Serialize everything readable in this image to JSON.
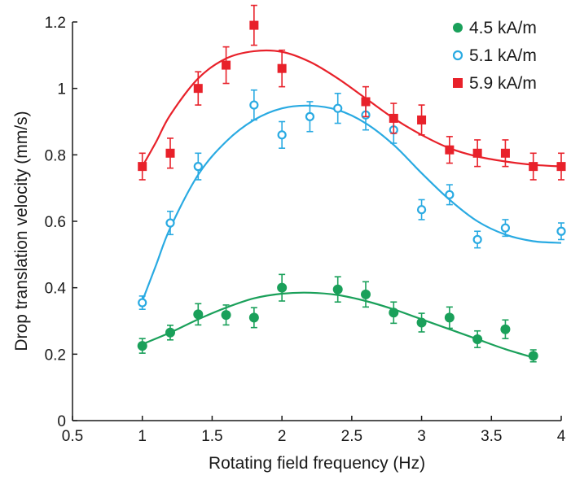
{
  "chart_data": {
    "type": "scatter",
    "xlabel": "Rotating field frequency (Hz)",
    "ylabel": "Drop translation velocity (mm/s)",
    "xlim": [
      0.5,
      4
    ],
    "ylim": [
      0,
      1.2
    ],
    "x_ticks": [
      0.5,
      1,
      1.5,
      2,
      2.5,
      3,
      3.5,
      4
    ],
    "x_tick_labels": [
      "0.5",
      "1",
      "1.5",
      "2",
      "2.5",
      "3",
      "3.5",
      "4"
    ],
    "y_ticks": [
      0,
      0.2,
      0.4,
      0.6,
      0.8,
      1,
      1.2
    ],
    "y_tick_labels": [
      "0",
      "0.2",
      "0.4",
      "0.6",
      "0.8",
      "1",
      "1.2"
    ],
    "grid": false,
    "legend_position": "top-right",
    "series": [
      {
        "name": "4.5 kA/m",
        "color": "#1aa05a",
        "marker": "filled-circle",
        "x": [
          1.0,
          1.2,
          1.4,
          1.6,
          1.8,
          2.0,
          2.4,
          2.6,
          2.8,
          3.0,
          3.2,
          3.4,
          3.6,
          3.8
        ],
        "y": [
          0.225,
          0.265,
          0.32,
          0.318,
          0.31,
          0.4,
          0.395,
          0.38,
          0.325,
          0.295,
          0.31,
          0.245,
          0.275,
          0.195
        ],
        "error": [
          0.022,
          0.022,
          0.032,
          0.03,
          0.03,
          0.04,
          0.038,
          0.038,
          0.032,
          0.028,
          0.032,
          0.025,
          0.028,
          0.018
        ],
        "fit_x": [
          1.0,
          1.2,
          1.4,
          1.6,
          1.8,
          2.0,
          2.2,
          2.4,
          2.6,
          2.8,
          3.0,
          3.2,
          3.4,
          3.6,
          3.8
        ],
        "fit_y": [
          0.23,
          0.265,
          0.305,
          0.34,
          0.368,
          0.382,
          0.385,
          0.378,
          0.36,
          0.335,
          0.305,
          0.275,
          0.245,
          0.215,
          0.19
        ]
      },
      {
        "name": "5.1 kA/m",
        "color": "#29aae2",
        "marker": "open-circle",
        "x": [
          1.0,
          1.2,
          1.4,
          1.8,
          2.0,
          2.2,
          2.4,
          2.6,
          2.8,
          3.0,
          3.2,
          3.4,
          3.6,
          4.0
        ],
        "y": [
          0.355,
          0.595,
          0.765,
          0.95,
          0.86,
          0.915,
          0.94,
          0.92,
          0.875,
          0.635,
          0.68,
          0.545,
          0.58,
          0.57
        ],
        "error": [
          0.02,
          0.035,
          0.04,
          0.045,
          0.04,
          0.045,
          0.045,
          0.045,
          0.04,
          0.03,
          0.03,
          0.025,
          0.025,
          0.025
        ],
        "fit_x": [
          1.0,
          1.1,
          1.2,
          1.4,
          1.6,
          1.8,
          2.0,
          2.2,
          2.4,
          2.6,
          2.8,
          3.0,
          3.2,
          3.4,
          3.6,
          3.8,
          4.0
        ],
        "fit_y": [
          0.36,
          0.47,
          0.58,
          0.74,
          0.84,
          0.905,
          0.94,
          0.948,
          0.935,
          0.895,
          0.83,
          0.745,
          0.665,
          0.6,
          0.56,
          0.54,
          0.535
        ]
      },
      {
        "name": "5.9 kA/m",
        "color": "#e8212a",
        "marker": "filled-square",
        "x": [
          1.0,
          1.2,
          1.4,
          1.6,
          1.8,
          2.0,
          2.6,
          2.8,
          3.0,
          3.2,
          3.4,
          3.6,
          3.8,
          4.0
        ],
        "y": [
          0.765,
          0.805,
          1.0,
          1.07,
          1.19,
          1.06,
          0.96,
          0.91,
          0.905,
          0.815,
          0.805,
          0.805,
          0.765,
          0.765
        ],
        "error": [
          0.04,
          0.045,
          0.05,
          0.055,
          0.06,
          0.055,
          0.045,
          0.045,
          0.045,
          0.04,
          0.04,
          0.04,
          0.04,
          0.04
        ],
        "fit_x": [
          1.0,
          1.1,
          1.2,
          1.4,
          1.6,
          1.8,
          2.0,
          2.2,
          2.4,
          2.6,
          2.8,
          3.0,
          3.2,
          3.4,
          3.6,
          3.8,
          4.0
        ],
        "fit_y": [
          0.765,
          0.84,
          0.92,
          1.03,
          1.09,
          1.112,
          1.11,
          1.08,
          1.03,
          0.97,
          0.91,
          0.86,
          0.82,
          0.795,
          0.78,
          0.77,
          0.765
        ]
      }
    ]
  }
}
